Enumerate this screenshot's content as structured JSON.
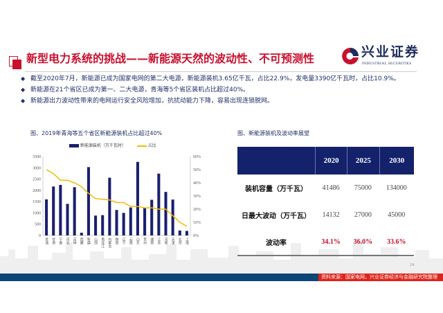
{
  "header": {
    "title": "新型电力系统的挑战——新能源天然的波动性、不可预测性",
    "logo_text": "兴业证券",
    "logo_subtext": "INDUSTRIAL SECURITIES"
  },
  "bullets": [
    "截至2020年7月，新能源已成为国家电网的第二大电源，新能源装机3.65亿千瓦，占比22.9%，发电量3390亿千瓦时，占比10.9%。",
    "新能源在21个省区已成为第一、二大电源，青海等5个省区装机占比超过40%。",
    "新能源出力波动性带来的电网运行安全风险增加，抗扰动能力下降，容易出现连锁脱网。"
  ],
  "chart_data": {
    "type": "bar",
    "title": "图、2019年青海等五个省区新能源装机占比超过40%",
    "categories": [
      "青海",
      "甘肃",
      "宁夏",
      "河北",
      "吉林",
      "西藏",
      "新疆",
      "山西",
      "黑龙江",
      "内蒙古",
      "陕西",
      "辽宁",
      "云南",
      "山东",
      "贵州",
      "湖南",
      "江苏",
      "河南",
      "天津",
      "北京",
      "上海"
    ],
    "series": [
      {
        "name": "新能源装机（万千瓦时）",
        "axis": "left",
        "type": "bar",
        "color": "#1a1f6e",
        "values": [
          1600,
          2170,
          2240,
          1400,
          2140,
          120,
          3030,
          880,
          900,
          2560,
          1130,
          1000,
          1240,
          3260,
          1210,
          1580,
          2740,
          1930,
          1590,
          220,
          200
        ]
      },
      {
        "name": "占比",
        "axis": "right",
        "type": "line",
        "color": "#f5b800",
        "values": [
          50,
          47,
          42,
          42,
          40,
          37,
          32,
          28,
          27.5,
          27,
          25,
          25,
          22,
          22,
          21,
          21,
          20,
          20,
          15,
          10,
          7
        ]
      }
    ],
    "ylim_left": [
      0,
      3500
    ],
    "yticks_left": [
      "0",
      "500",
      "1000",
      "1500",
      "2000",
      "2500",
      "3000",
      "3500"
    ],
    "ylim_right": [
      0,
      60
    ],
    "yticks_right": [
      "0%",
      "10%",
      "20%",
      "30%",
      "40%",
      "50%",
      "60%"
    ],
    "legend": "top",
    "grid": false
  },
  "table": {
    "title": "图、新能源装机及波动率展望",
    "headers": [
      "",
      "2020",
      "2025",
      "2030"
    ],
    "rows": [
      {
        "label": "装机容量（万千瓦）",
        "values": [
          "41486",
          "75000",
          "134000"
        ]
      },
      {
        "label": "日最大波动（万千瓦）",
        "values": [
          "14132",
          "27000",
          "45000"
        ]
      },
      {
        "label": "波动率",
        "values": [
          "34.1%",
          "36.0%",
          "33.6%"
        ]
      }
    ]
  },
  "footer": {
    "source": "资料来源：国家电网，兴业证券经济与金融研究院整理",
    "page": "24"
  },
  "colors": {
    "accent": "#c8102e",
    "navy": "#14216b",
    "footer": "#0b4677",
    "source_bg": "#e0231a"
  }
}
